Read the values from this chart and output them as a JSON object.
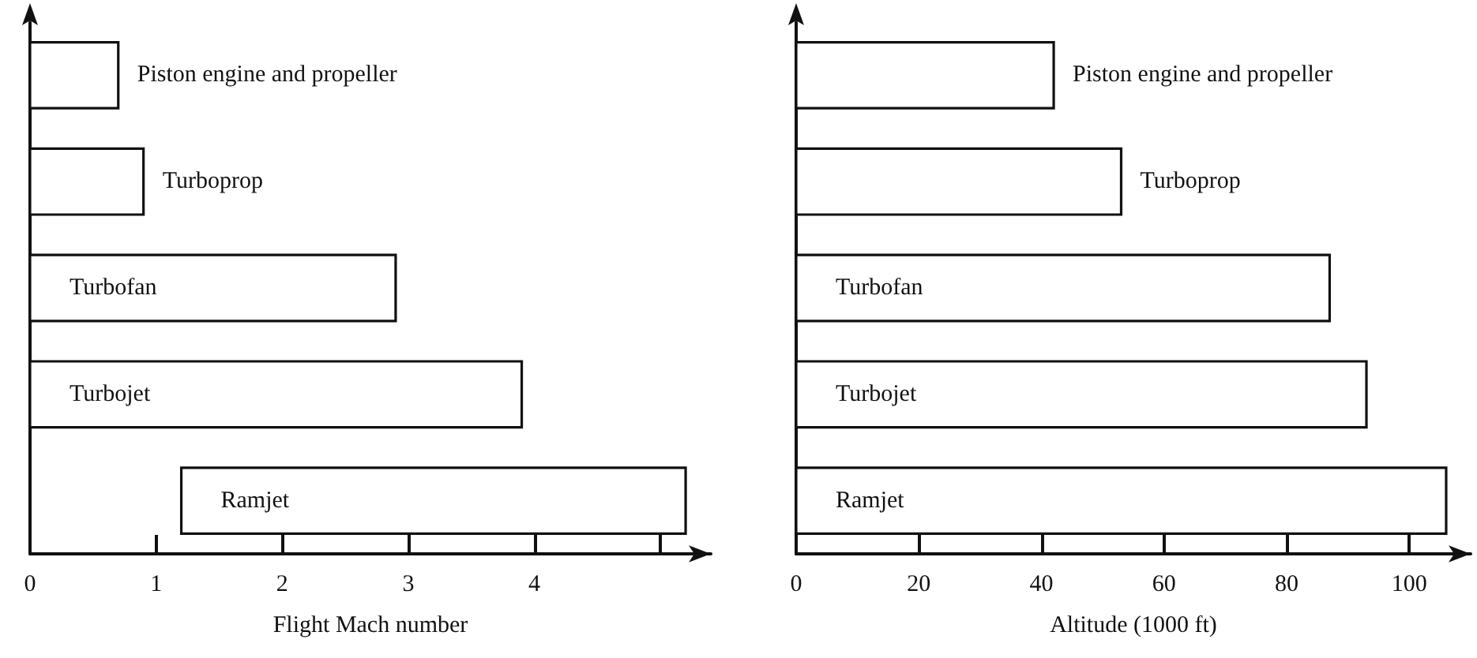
{
  "chart_data": [
    {
      "type": "bar",
      "orientation": "horizontal",
      "xlabel": "Flight Mach number",
      "categories": [
        "Piston engine and propeller",
        "Turboprop",
        "Turbofan",
        "Turbojet",
        "Ramjet"
      ],
      "base": [
        0,
        0,
        0,
        0,
        1.2
      ],
      "values": [
        0.7,
        0.9,
        2.9,
        3.9,
        4.0
      ],
      "color": "#ffffff",
      "xlim": [
        0,
        5.4
      ],
      "xticks": [
        0,
        1,
        2,
        3,
        4,
        {
          "value": 5,
          "label": null
        }
      ],
      "tick_labels": "x"
    },
    {
      "type": "bar",
      "orientation": "horizontal",
      "xlabel": "Altitude (1000 ft)",
      "categories": [
        "Piston engine and propeller",
        "Turboprop",
        "Turbofan",
        "Turbojet",
        "Ramjet"
      ],
      "values": [
        42,
        53,
        87,
        93,
        106
      ],
      "color": "#ffffff",
      "xlim": [
        0,
        110
      ],
      "xticks": [
        0,
        20,
        40,
        60,
        80,
        100
      ],
      "tick_labels": "x"
    }
  ]
}
